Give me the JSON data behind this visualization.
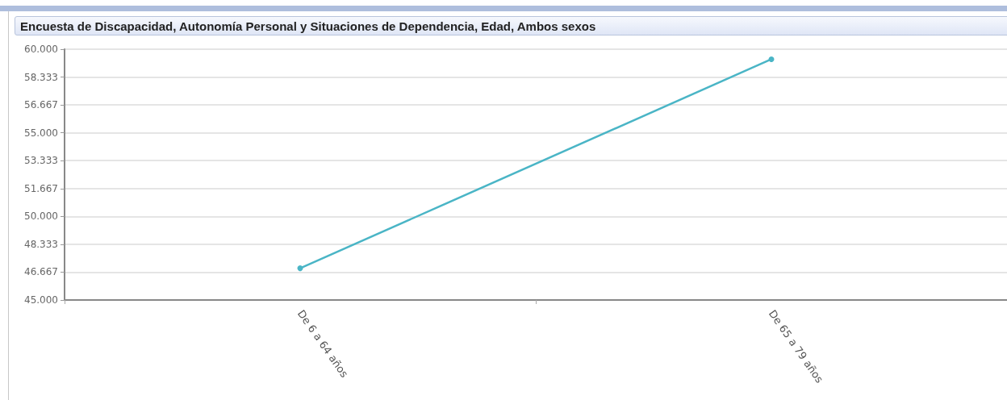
{
  "chart_data": {
    "type": "line",
    "title": "Encuesta de Discapacidad, Autonomía Personal y Situaciones de Dependencia, Edad, Ambos sexos",
    "categories": [
      "De 6 a 64 años",
      "De 65 a 79 años"
    ],
    "series": [
      {
        "color": "#4ab5c6",
        "values": [
          46900,
          59400
        ]
      }
    ],
    "ylim": [
      45000,
      60000
    ],
    "yticks": [
      {
        "value": 45000,
        "label": "45.000"
      },
      {
        "value": 46667,
        "label": "46.667"
      },
      {
        "value": 48333,
        "label": "48.333"
      },
      {
        "value": 50000,
        "label": "50.000"
      },
      {
        "value": 51667,
        "label": "51.667"
      },
      {
        "value": 53333,
        "label": "53.333"
      },
      {
        "value": 55000,
        "label": "55.000"
      },
      {
        "value": 56667,
        "label": "56.667"
      },
      {
        "value": 58333,
        "label": "58.333"
      },
      {
        "value": 60000,
        "label": "60.000"
      }
    ],
    "grid": "y",
    "marker": "circle",
    "line_style": "solid"
  }
}
